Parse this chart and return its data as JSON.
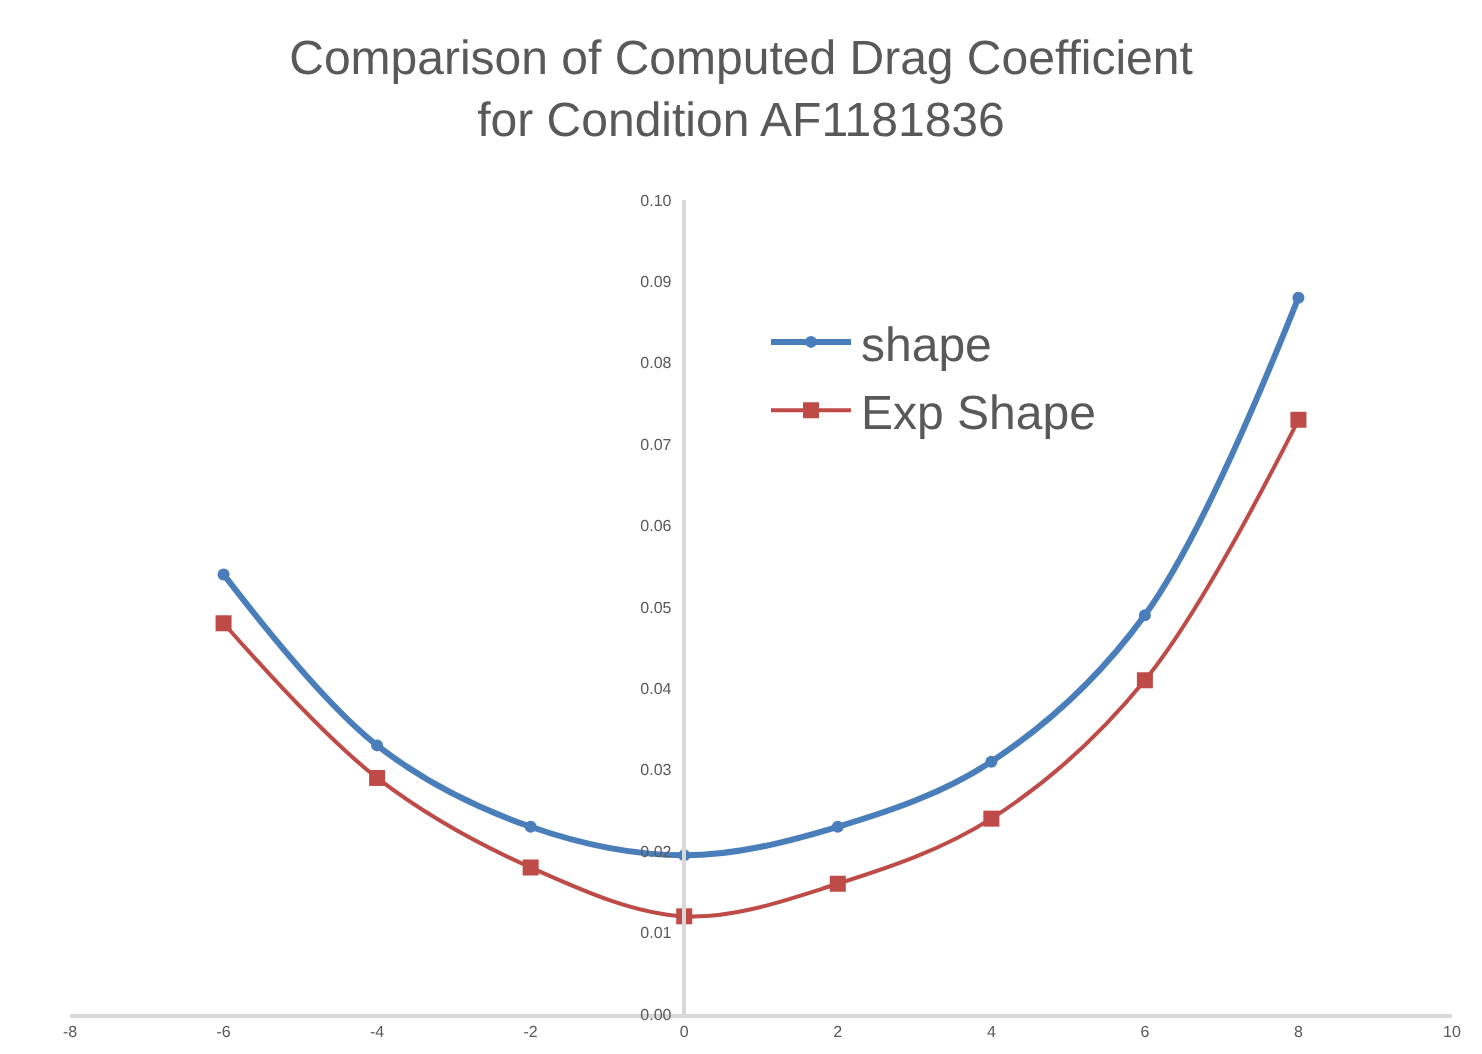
{
  "chart_data": {
    "type": "line",
    "title": "Comparison of Computed Drag Coefficient\nfor Condition AF1181836",
    "x": [
      -6,
      -4,
      -2,
      0,
      2,
      4,
      6,
      8
    ],
    "series": [
      {
        "name": "shape",
        "color": "#4a7ebb",
        "marker": "circle",
        "values": [
          0.054,
          0.033,
          0.023,
          0.0195,
          0.023,
          0.031,
          0.049,
          0.088
        ]
      },
      {
        "name": "Exp Shape",
        "color": "#be4b48",
        "marker": "square",
        "values": [
          0.048,
          0.029,
          0.018,
          0.012,
          0.016,
          0.024,
          0.041,
          0.073
        ]
      }
    ],
    "xlim": [
      -8,
      10
    ],
    "xticks": [
      -8,
      -6,
      -4,
      -2,
      0,
      2,
      4,
      6,
      8,
      10
    ],
    "ylim": [
      0,
      0.1
    ],
    "yticks": [
      {
        "value": 0,
        "label": "0.00"
      },
      {
        "value": 0.01,
        "label": "0.01"
      },
      {
        "value": 0.02,
        "label": "0.02"
      },
      {
        "value": 0.03,
        "label": "0.03"
      },
      {
        "value": 0.04,
        "label": "0.04"
      },
      {
        "value": 0.05,
        "label": "0.05"
      },
      {
        "value": 0.06,
        "label": "0.06"
      },
      {
        "value": 0.07,
        "label": "0.07"
      },
      {
        "value": 0.08,
        "label": "0.08"
      },
      {
        "value": 0.09,
        "label": "0.09"
      },
      {
        "value": 0.1,
        "label": "0.10"
      }
    ],
    "grid": false,
    "legend": "top right"
  }
}
